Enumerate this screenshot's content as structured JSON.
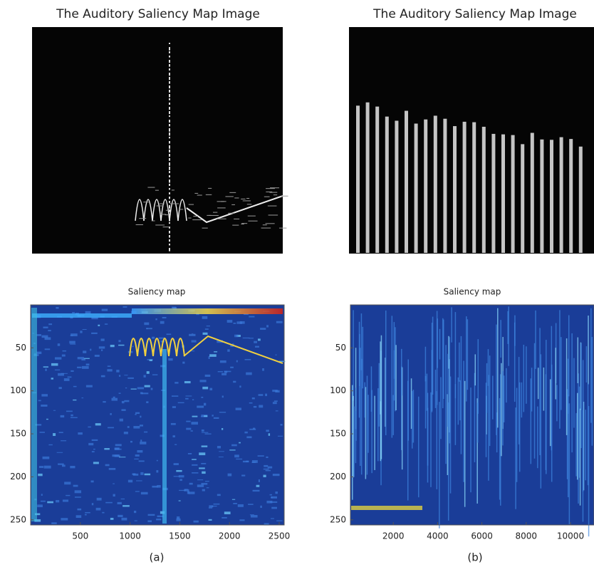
{
  "panels": [
    {
      "image_title": "The Auditory Saliency Map Image",
      "map_title": "Saliency map",
      "yticks": [
        50,
        100,
        150,
        200,
        250
      ],
      "xticks": [
        500,
        1000,
        1500,
        2000,
        2500
      ],
      "caption": "(a)"
    },
    {
      "image_title": "The Auditory Saliency Map Image",
      "map_title": "Saliency map",
      "yticks": [
        50,
        100,
        150,
        200,
        250
      ],
      "xticks": [
        2000,
        4000,
        6000,
        8000,
        10000
      ],
      "caption": "(b)"
    }
  ]
}
